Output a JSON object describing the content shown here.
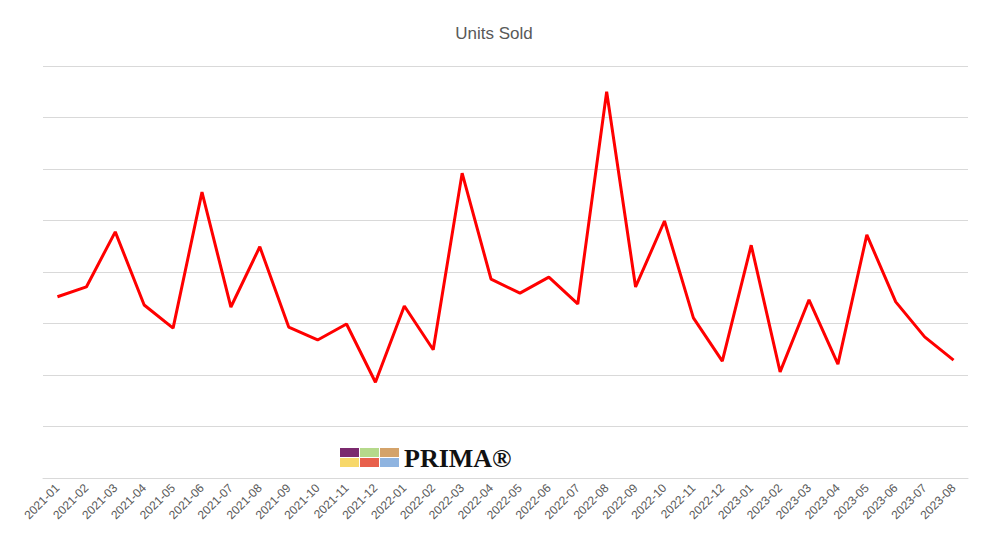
{
  "chart_data": {
    "type": "line",
    "title": "Units Sold",
    "categories": [
      "2021-01",
      "2021-02",
      "2021-03",
      "2021-04",
      "2021-05",
      "2021-06",
      "2021-07",
      "2021-08",
      "2021-09",
      "2021-10",
      "2021-11",
      "2021-12",
      "2022-01",
      "2022-02",
      "2022-03",
      "2022-04",
      "2022-05",
      "2022-06",
      "2022-07",
      "2022-08",
      "2022-09",
      "2022-10",
      "2022-11",
      "2022-12",
      "2023-01",
      "2023-02",
      "2023-03",
      "2023-04",
      "2023-05",
      "2023-06",
      "2023-07",
      "2023-08"
    ],
    "values": [
      3.52,
      3.71,
      4.78,
      3.36,
      2.91,
      5.55,
      3.32,
      4.49,
      2.93,
      2.68,
      2.99,
      1.86,
      3.34,
      2.49,
      5.92,
      3.86,
      3.59,
      3.9,
      3.38,
      7.5,
      3.71,
      4.99,
      3.11,
      2.27,
      4.52,
      2.06,
      3.46,
      2.21,
      4.72,
      3.42,
      2.74,
      2.29
    ],
    "color": "#ff0000",
    "ylim": [
      0,
      8
    ],
    "yticks": [
      0,
      1,
      2,
      3,
      4,
      5,
      6,
      7,
      8
    ],
    "grid": true,
    "tick_labels": "x",
    "annotations": [
      "PRIMA®"
    ]
  }
}
